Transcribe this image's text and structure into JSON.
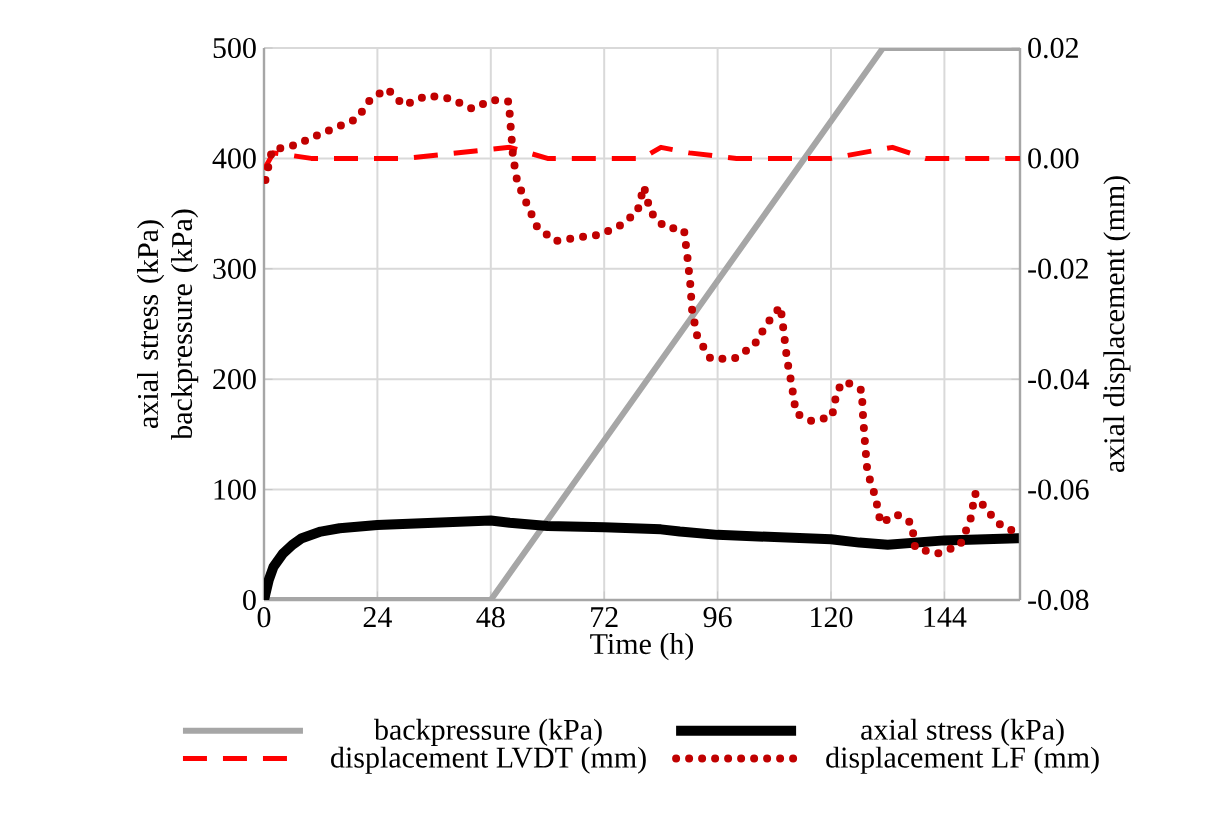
{
  "chart_data": {
    "type": "line",
    "xlabel": "Time (h)",
    "ylabel": "axial stress (kPa) backpressure (kPa)",
    "y2label": "axial displacement (mm)",
    "xlim": [
      0,
      160
    ],
    "xticks": [
      0,
      24,
      48,
      72,
      96,
      120,
      144
    ],
    "ylim": [
      0,
      500
    ],
    "yticks": [
      0,
      100,
      200,
      300,
      400,
      500
    ],
    "y2lim": [
      -0.08,
      0.02
    ],
    "y2ticks": [
      {
        "value": -0.08,
        "label": "-0.08"
      },
      {
        "value": -0.06,
        "label": "-0.06"
      },
      {
        "value": -0.04,
        "label": "-0.04"
      },
      {
        "value": -0.02,
        "label": "-0.02"
      },
      {
        "value": 0,
        "label": "0.00"
      },
      {
        "value": 0.02,
        "label": "0.02"
      }
    ],
    "grid": true,
    "legend": "bottom",
    "marker": "none",
    "series": [
      {
        "name": "backpressure (kPa)",
        "color": "#a6a6a6",
        "line_style": "solid",
        "x": [
          0,
          48,
          131,
          160
        ],
        "values": [
          0,
          0,
          500,
          500
        ]
      },
      {
        "name": "axial stress (kPa)",
        "color": "#000000",
        "line_style": "solid",
        "x": [
          0,
          1,
          2,
          4,
          6,
          8,
          12,
          16,
          24,
          36,
          48,
          52,
          60,
          72,
          84,
          88,
          96,
          108,
          120,
          126,
          132,
          144,
          160
        ],
        "values": [
          0,
          18,
          30,
          42,
          50,
          56,
          62,
          65,
          68,
          70,
          72,
          70,
          67,
          66,
          64,
          62,
          59,
          57,
          55,
          52,
          50,
          54,
          56
        ]
      },
      {
        "name": "displacement LVDT (mm)",
        "color": "#ff0000",
        "line_style": "dashed",
        "axis": "y2",
        "x": [
          0,
          2,
          10,
          30,
          52,
          60,
          80,
          84,
          90,
          100,
          120,
          133,
          140,
          160
        ],
        "values": [
          -0.002,
          0.001,
          0.0,
          0.0,
          0.002,
          0.0,
          0.0,
          0.002,
          0.001,
          0.0,
          0.0,
          0.002,
          0.0,
          0.0
        ]
      },
      {
        "name": "displacement LF (mm)",
        "color": "#c00000",
        "line_style": "dotted",
        "axis": "y2",
        "x": [
          0.3,
          1.7,
          6.6,
          11.3,
          15.8,
          19.7,
          22.6,
          26.1,
          29.6,
          34.5,
          39.5,
          44,
          48.3,
          51.8,
          52.2,
          52.7,
          53.6,
          55.6,
          57.8,
          61.6,
          65.9,
          71.2,
          75.5,
          79,
          80.4,
          81.8,
          84.7,
          88.9,
          89.6,
          90.2,
          90.6,
          91.7,
          94.5,
          99.5,
          103.7,
          106.5,
          109.3,
          110,
          110.7,
          111.7,
          112.6,
          115.9,
          120.2,
          121.3,
          123,
          126.5,
          126.8,
          127.2,
          127.7,
          129.4,
          130.5,
          133.9,
          137.1,
          137.8,
          142.5,
          147.3,
          149.5,
          150.5,
          152.9,
          156.2,
          160
        ],
        "values": [
          -0.0039,
          0.0015,
          0.0024,
          0.0042,
          0.0058,
          0.0072,
          0.0108,
          0.0126,
          0.0096,
          0.0114,
          0.0108,
          0.009,
          0.0106,
          0.0103,
          0.0058,
          0.0003,
          -0.0042,
          -0.0082,
          -0.0124,
          -0.015,
          -0.0144,
          -0.0138,
          -0.0121,
          -0.0097,
          -0.0051,
          -0.0097,
          -0.0124,
          -0.013,
          -0.0178,
          -0.0226,
          -0.0275,
          -0.0323,
          -0.0363,
          -0.0363,
          -0.0339,
          -0.0299,
          -0.0268,
          -0.0314,
          -0.0365,
          -0.0411,
          -0.0462,
          -0.0476,
          -0.0468,
          -0.042,
          -0.0404,
          -0.042,
          -0.0471,
          -0.0516,
          -0.0568,
          -0.0613,
          -0.0661,
          -0.0645,
          -0.0661,
          -0.0706,
          -0.0716,
          -0.0701,
          -0.0655,
          -0.0607,
          -0.0637,
          -0.0667,
          -0.0679
        ]
      }
    ]
  }
}
